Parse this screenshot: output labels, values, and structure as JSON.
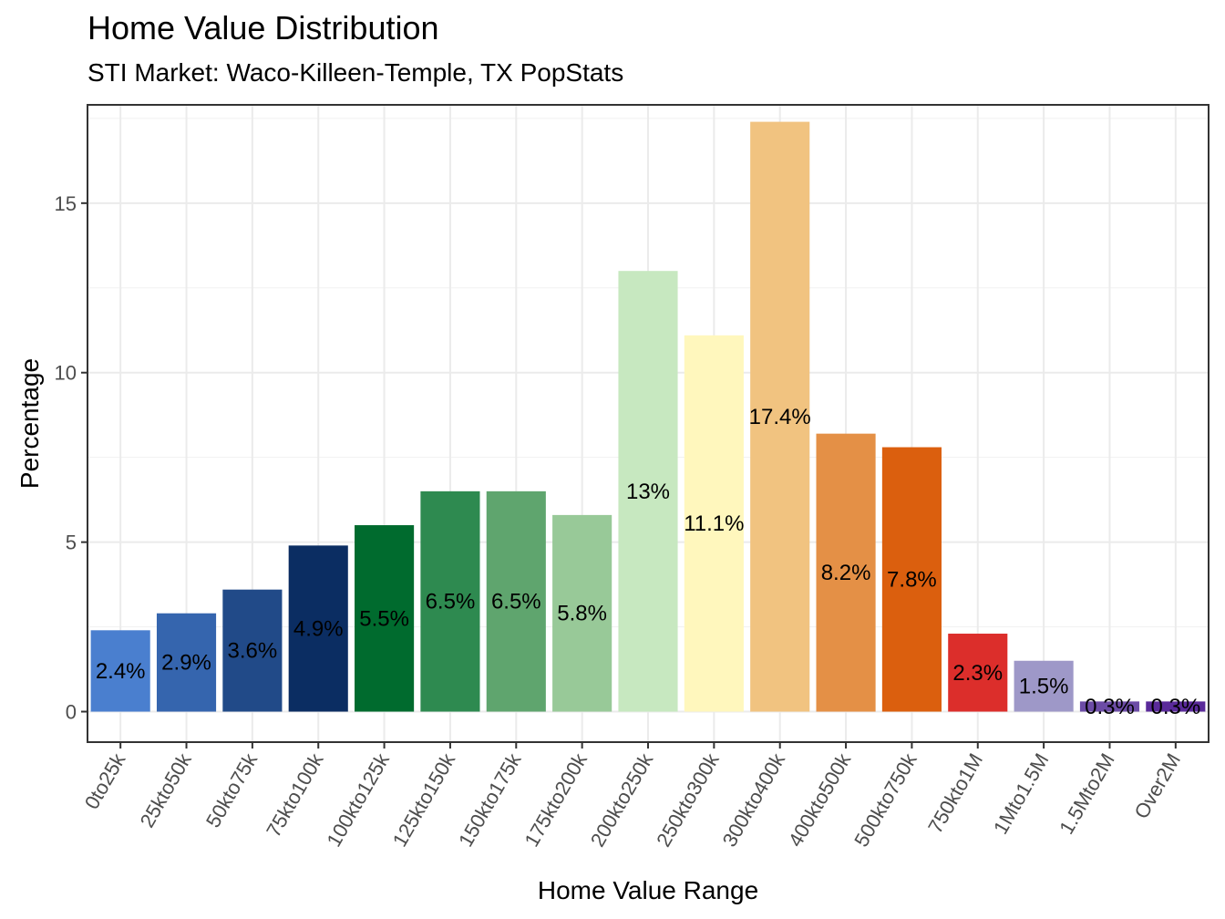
{
  "title": "Home Value Distribution",
  "subtitle": "STI Market: Waco-Killeen-Temple, TX PopStats",
  "chart_data": {
    "type": "bar",
    "xlabel": "Home Value Range",
    "ylabel": "Percentage",
    "ylim": [
      -0.9,
      17.9
    ],
    "yticks": [
      0,
      5,
      10,
      15
    ],
    "grid": true,
    "legend": "none",
    "categories": [
      "0to25k",
      "25kto50k",
      "50kto75k",
      "75kto100k",
      "100kto125k",
      "125kto150k",
      "150kto175k",
      "175kto200k",
      "200kto250k",
      "250kto300k",
      "300kto400k",
      "400kto500k",
      "500kto750k",
      "750kto1M",
      "1Mto1.5M",
      "1.5Mto2M",
      "Over2M"
    ],
    "values": [
      2.4,
      2.9,
      3.6,
      4.9,
      5.5,
      6.5,
      6.5,
      5.8,
      13,
      11.1,
      17.4,
      8.2,
      7.8,
      2.3,
      1.5,
      0.3,
      0.3
    ],
    "labels": [
      "2.4%",
      "2.9%",
      "3.6%",
      "4.9%",
      "5.5%",
      "6.5%",
      "6.5%",
      "5.8%",
      "13%",
      "11.1%",
      "17.4%",
      "8.2%",
      "7.8%",
      "2.3%",
      "1.5%",
      "0.3%",
      "0.3%"
    ],
    "colors": [
      "#4a7fcf",
      "#3565ae",
      "#214a88",
      "#0b2d62",
      "#006b2e",
      "#2e8a50",
      "#5fa56e",
      "#98c998",
      "#c7e8c0",
      "#fff7bd",
      "#f1c380",
      "#e49046",
      "#db5f0e",
      "#dc2e2b",
      "#9e98c8",
      "#6c4ca6",
      "#5a2a9a"
    ]
  }
}
